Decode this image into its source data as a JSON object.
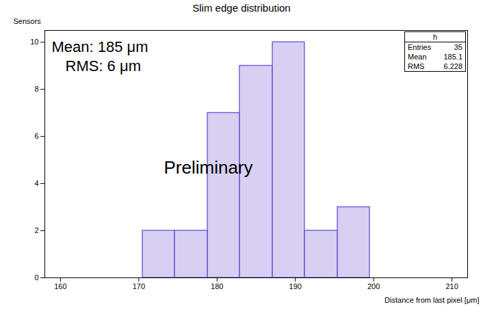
{
  "chart_data": {
    "type": "histogram",
    "title": "Slim edge distribution",
    "x_label": "Distance from last pixel [μm]",
    "y_label": "Sensors",
    "bins": [
      170.5,
      174.6,
      178.8,
      182.9,
      187.1,
      191.2,
      195.4,
      199.5
    ],
    "values": [
      2,
      2,
      7,
      9,
      10,
      2,
      3
    ],
    "color": "#7b62d6",
    "xlim": [
      158,
      212
    ],
    "ylim": [
      0,
      10.5
    ],
    "xticks": [
      160,
      170,
      180,
      190,
      200,
      210
    ],
    "yticks": [
      0,
      2,
      4,
      6,
      8,
      10
    ],
    "grid": false,
    "annotations": [
      "Mean: 185 μm",
      "RMS: 6 μm",
      "Preliminary"
    ],
    "stats_box": {
      "title": "h",
      "entries": [
        {
          "label": "Entries",
          "value": 35
        },
        {
          "label": "Mean",
          "value": 185.1
        },
        {
          "label": "RMS",
          "value": 6.228
        }
      ]
    }
  }
}
